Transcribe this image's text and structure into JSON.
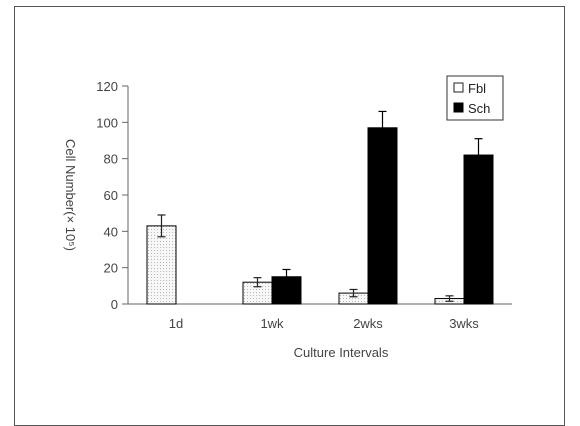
{
  "chart_data": {
    "type": "bar",
    "categories": [
      "1d",
      "1wk",
      "2wks",
      "3wks"
    ],
    "series": [
      {
        "name": "Fbl",
        "values": [
          43,
          12,
          6,
          3
        ],
        "errors": [
          6,
          2.5,
          2,
          1.5
        ],
        "pattern": "dotted-light",
        "color": "#f2f2f2"
      },
      {
        "name": "Sch",
        "values": [
          0,
          15,
          97,
          82
        ],
        "errors": [
          0,
          4,
          9,
          9
        ],
        "pattern": "solid",
        "color": "#000000"
      }
    ],
    "ylabel": "Cell Number(× 10⁵)",
    "xlabel": "Culture Intervals",
    "ylim": [
      0,
      120
    ],
    "yticks": [
      0,
      20,
      40,
      60,
      80,
      100,
      120
    ],
    "legend_position": "top-right",
    "grid": false
  }
}
